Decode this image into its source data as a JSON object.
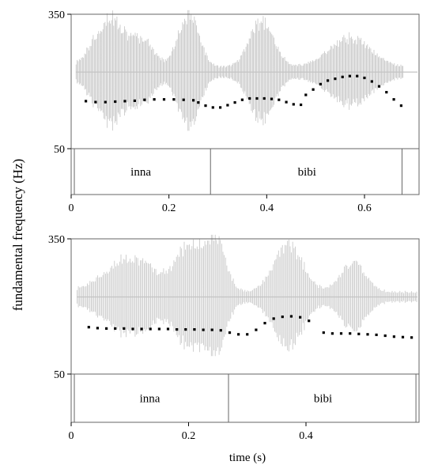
{
  "y_axis_label": "fundamental frequency (Hz)",
  "x_axis_label": "time (s)",
  "colors": {
    "waveform": "#c4c4c4",
    "pitch": "#000000",
    "frame": "#666666"
  },
  "chart_data": [
    {
      "type": "line",
      "name": "top-panel",
      "ylim": [
        50,
        350
      ],
      "xlim": [
        0,
        0.68
      ],
      "y_ticks": [
        "350",
        "50"
      ],
      "x_ticks": [
        {
          "value": 0,
          "label": "0"
        },
        {
          "value": 0.2,
          "label": "0.2"
        },
        {
          "value": 0.4,
          "label": "0.4"
        },
        {
          "value": 0.6,
          "label": "0.6"
        }
      ],
      "segments": [
        {
          "label": "inna",
          "start": 0.0,
          "end": 0.285
        },
        {
          "label": "bibi",
          "start": 0.285,
          "end": 0.68
        }
      ],
      "waveform_bursts": [
        {
          "center": 0.08,
          "amplitude": 0.95,
          "width": 0.09
        },
        {
          "center": 0.15,
          "amplitude": 0.45,
          "width": 0.06
        },
        {
          "center": 0.24,
          "amplitude": 0.98,
          "width": 0.06
        },
        {
          "center": 0.39,
          "amplitude": 0.85,
          "width": 0.07
        },
        {
          "center": 0.57,
          "amplitude": 0.55,
          "width": 0.12
        }
      ],
      "waveform_range": [
        0.01,
        0.68
      ],
      "pitch_segments": [
        {
          "x": [
            0.03,
            0.05,
            0.07,
            0.09,
            0.11,
            0.13,
            0.15,
            0.17,
            0.19,
            0.21,
            0.23,
            0.25
          ],
          "y": [
            156,
            154,
            154,
            155,
            156,
            157,
            159,
            160,
            160,
            160,
            159,
            158
          ]
        },
        {
          "x": [
            0.26,
            0.275,
            0.29,
            0.305,
            0.32,
            0.335,
            0.35,
            0.365,
            0.38,
            0.395,
            0.41,
            0.425,
            0.44,
            0.455,
            0.47
          ],
          "y": [
            153,
            146,
            142,
            142,
            147,
            153,
            159,
            162,
            162,
            162,
            161,
            159,
            154,
            149,
            148
          ]
        },
        {
          "x": [
            0.48,
            0.495,
            0.51,
            0.525,
            0.54,
            0.555,
            0.57,
            0.585,
            0.6,
            0.615,
            0.63,
            0.645,
            0.66,
            0.675
          ],
          "y": [
            170,
            182,
            194,
            202,
            206,
            210,
            212,
            212,
            208,
            200,
            189,
            176,
            160,
            146
          ]
        }
      ]
    },
    {
      "type": "line",
      "name": "bottom-panel",
      "ylim": [
        50,
        350
      ],
      "xlim": [
        0,
        0.59
      ],
      "y_ticks": [
        "350",
        "50"
      ],
      "x_ticks": [
        {
          "value": 0,
          "label": "0"
        },
        {
          "value": 0.2,
          "label": "0.2"
        },
        {
          "value": 0.4,
          "label": "0.4"
        }
      ],
      "segments": [
        {
          "label": "inna",
          "start": 0.0,
          "end": 0.268
        },
        {
          "label": "bibi",
          "start": 0.268,
          "end": 0.59
        }
      ],
      "waveform_bursts": [
        {
          "center": 0.1,
          "amplitude": 0.65,
          "width": 0.12
        },
        {
          "center": 0.2,
          "amplitude": 0.8,
          "width": 0.06
        },
        {
          "center": 0.245,
          "amplitude": 0.95,
          "width": 0.05
        },
        {
          "center": 0.37,
          "amplitude": 0.85,
          "width": 0.07
        },
        {
          "center": 0.48,
          "amplitude": 0.55,
          "width": 0.06
        }
      ],
      "waveform_range": [
        0.01,
        0.59
      ],
      "pitch_segments": [
        {
          "x": [
            0.03,
            0.045,
            0.06,
            0.075,
            0.09,
            0.105,
            0.12,
            0.135,
            0.15,
            0.165,
            0.18,
            0.195,
            0.21,
            0.225,
            0.24,
            0.255
          ],
          "y": [
            154,
            152,
            151,
            151,
            151,
            150,
            150,
            150,
            150,
            150,
            149,
            149,
            149,
            148,
            148,
            147
          ]
        },
        {
          "x": [
            0.27,
            0.285,
            0.3,
            0.315,
            0.33,
            0.345,
            0.36,
            0.375,
            0.39,
            0.405
          ],
          "y": [
            142,
            138,
            138,
            148,
            163,
            173,
            177,
            178,
            176,
            168
          ]
        },
        {
          "x": [
            0.43,
            0.445,
            0.46,
            0.475,
            0.49,
            0.505,
            0.52,
            0.535,
            0.55,
            0.565,
            0.58
          ],
          "y": [
            142,
            140,
            140,
            140,
            139,
            138,
            137,
            135,
            133,
            132,
            131
          ]
        }
      ]
    }
  ]
}
